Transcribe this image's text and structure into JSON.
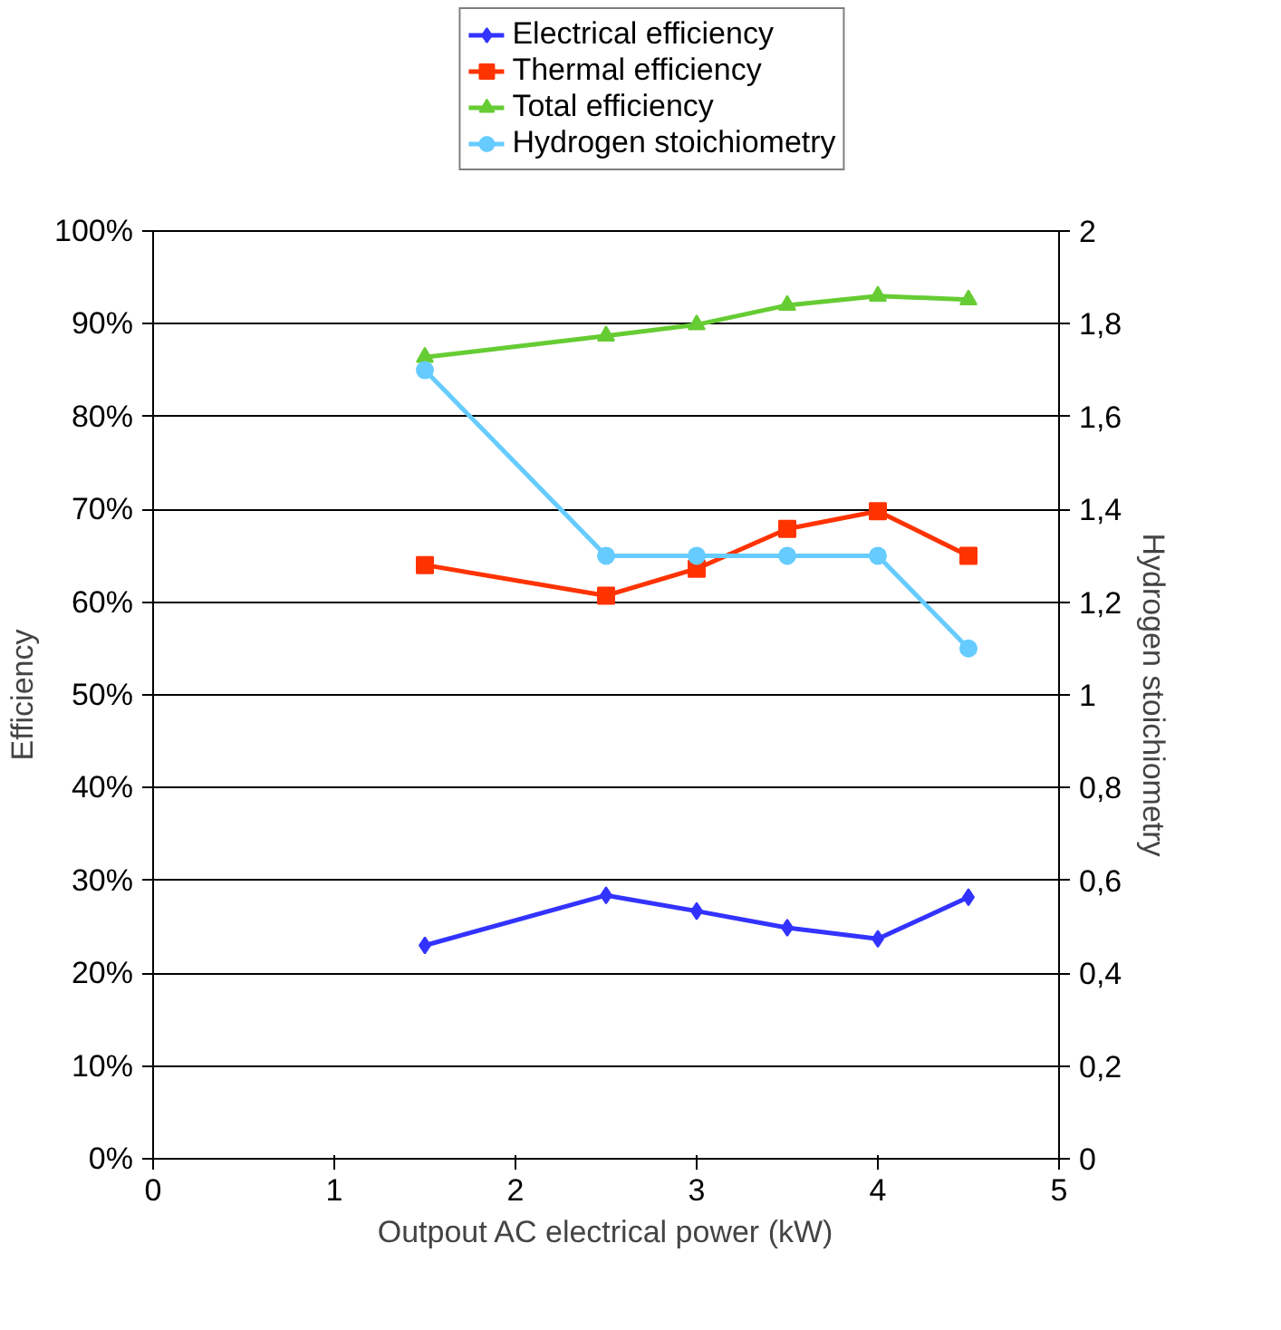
{
  "chart_data": {
    "type": "line",
    "xlabel": "Outpout AC electrical power (kW)",
    "ylabel": "Efficiency",
    "y2label": "Hydrogen stoichiometry",
    "x": [
      1.5,
      2.5,
      3,
      3.5,
      4,
      4.5
    ],
    "xlim": [
      0,
      5
    ],
    "xticks": [
      0,
      1,
      2,
      3,
      4,
      5
    ],
    "ylim": [
      0,
      100
    ],
    "yticks": [
      {
        "value": 0,
        "label": "0%"
      },
      {
        "value": 10,
        "label": "10%"
      },
      {
        "value": 20,
        "label": "20%"
      },
      {
        "value": 30,
        "label": "30%"
      },
      {
        "value": 40,
        "label": "40%"
      },
      {
        "value": 50,
        "label": "50%"
      },
      {
        "value": 60,
        "label": "60%"
      },
      {
        "value": 70,
        "label": "70%"
      },
      {
        "value": 80,
        "label": "80%"
      },
      {
        "value": 90,
        "label": "90%"
      },
      {
        "value": 100,
        "label": "100%"
      }
    ],
    "y2lim": [
      0,
      2
    ],
    "y2ticks": [
      0,
      {
        "value": 0.2,
        "label": "0,2"
      },
      {
        "value": 0.4,
        "label": "0,4"
      },
      {
        "value": 0.6,
        "label": "0,6"
      },
      {
        "value": 0.8,
        "label": "0,8"
      },
      1,
      {
        "value": 1.2,
        "label": "1,2"
      },
      {
        "value": 1.4,
        "label": "1,4"
      },
      {
        "value": 1.6,
        "label": "1,6"
      },
      {
        "value": 1.8,
        "label": "1,8"
      },
      2
    ],
    "series": [
      {
        "name": "Electrical efficiency",
        "color": "#3333ff",
        "marker": "diamond",
        "values": [
          23,
          28.4,
          26.7,
          24.9,
          23.7,
          28.2
        ]
      },
      {
        "name": "Thermal efficiency",
        "color": "#ff3300",
        "marker": "square",
        "values": [
          64,
          60.7,
          63.6,
          67.9,
          69.8,
          65
        ]
      },
      {
        "name": "Total efficiency",
        "color": "#66cc33",
        "marker": "triangle",
        "values": [
          86.4,
          88.7,
          89.9,
          92,
          93,
          92.6
        ]
      },
      {
        "name": "Hydrogen stoichiometry",
        "color": "#66ccff",
        "marker": "circle",
        "axis": "y2",
        "values": [
          1.7,
          1.3,
          1.3,
          1.3,
          1.3,
          1.1
        ]
      }
    ],
    "grid": "y",
    "legend": "top",
    "line_style": "solid"
  }
}
